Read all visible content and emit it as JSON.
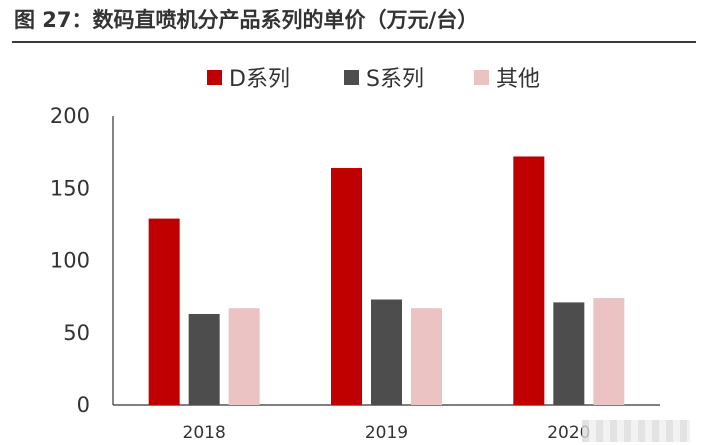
{
  "title": "图 27：数码直喷机分产品系列的单价（万元/台）",
  "chart_data": {
    "type": "bar",
    "categories": [
      "2018",
      "2019",
      "2020"
    ],
    "series": [
      {
        "name": "D系列",
        "values": [
          129,
          164,
          172
        ],
        "color": "#c00000"
      },
      {
        "name": "S系列",
        "values": [
          63,
          73,
          71
        ],
        "color": "#4d4d4d"
      },
      {
        "name": "其他",
        "values": [
          67,
          67,
          74
        ],
        "color": "#ecc3c3"
      }
    ],
    "ylim": [
      0,
      200
    ],
    "yticks": [
      0,
      50,
      100,
      150,
      200
    ],
    "grid": false,
    "legend": "top"
  }
}
